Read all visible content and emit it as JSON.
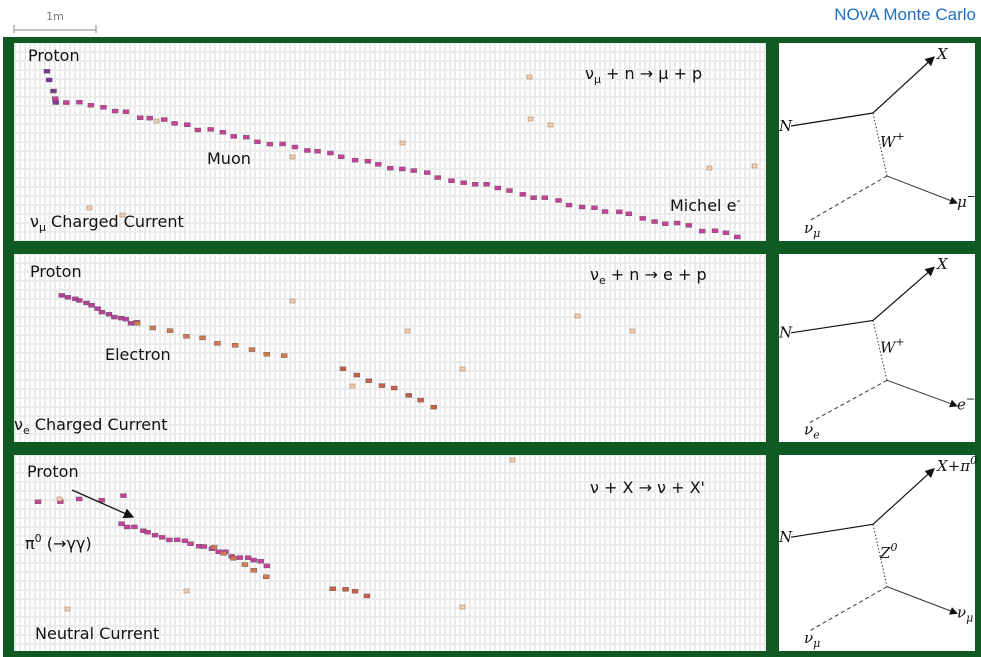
{
  "scale_bar": "1m",
  "header": "NOνA Monte Carlo",
  "panels": [
    {
      "reaction": {
        "t": "ν",
        "sub": "μ",
        "after": " + n → μ + p"
      },
      "current": {
        "t": "ν",
        "sub": "μ",
        "after": " Charged Current"
      },
      "particles": [
        {
          "t": "Proton"
        },
        {
          "t": "Muon"
        },
        {
          "t": "Michel e",
          "sup": "-"
        }
      ],
      "feynman": {
        "incoming": {
          "t": "N"
        },
        "outgoing": {
          "t": "X"
        },
        "boson": {
          "t": "W",
          "sup": "+"
        },
        "neutrino": {
          "t": "ν",
          "sub": "μ"
        },
        "lepton": {
          "t": "μ",
          "sup": "−"
        }
      }
    },
    {
      "reaction": {
        "t": "ν",
        "sub": "e",
        "after": " + n → e + p"
      },
      "current": {
        "t": "ν",
        "sub": "e",
        "after": " Charged Current"
      },
      "particles": [
        {
          "t": "Proton"
        },
        {
          "t": "Electron"
        }
      ],
      "feynman": {
        "incoming": {
          "t": "N"
        },
        "outgoing": {
          "t": "X"
        },
        "boson": {
          "t": "W",
          "sup": "+"
        },
        "neutrino": {
          "t": "ν",
          "sub": "e"
        },
        "lepton": {
          "t": "e",
          "sup": "−"
        }
      }
    },
    {
      "reaction": {
        "t": "ν + X → ν + X'"
      },
      "current": {
        "t": "Neutral Current"
      },
      "particles": [
        {
          "t": "Proton"
        },
        {
          "t": "π",
          "sup": "0",
          "after": " (→γγ)"
        }
      ],
      "feynman": {
        "incoming": {
          "t": "N"
        },
        "outgoing": {
          "t": "X+π",
          "sup": "0"
        },
        "boson": {
          "t": "Z",
          "sup": "0"
        },
        "neutrino": {
          "t": "ν",
          "sub": "μ"
        },
        "lepton": {
          "t": "ν",
          "sub": "μ"
        }
      }
    }
  ]
}
